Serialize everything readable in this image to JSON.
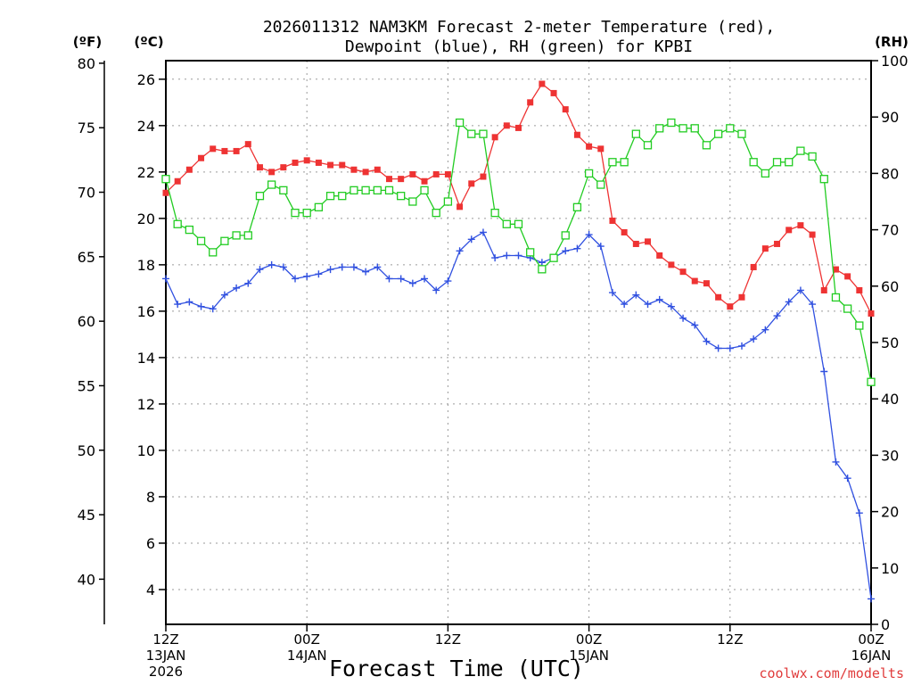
{
  "chart_data": {
    "type": "line",
    "title": [
      "2026011312 NAM3KM Forecast 2-meter Temperature (red),",
      "Dewpoint (blue), RH (green) for KPBI"
    ],
    "xlabel": "Forecast Time (UTC)",
    "credit": "coolwx.com/modelts",
    "units": {
      "fahrenheit": "(ºF)",
      "celsius": "(ºC)",
      "rh": "(RH)"
    },
    "x_range": [
      0,
      60
    ],
    "x_ticks": [
      {
        "x": 0,
        "lines": [
          "12Z",
          "13JAN",
          "2026"
        ]
      },
      {
        "x": 12,
        "lines": [
          "00Z",
          "14JAN"
        ]
      },
      {
        "x": 24,
        "lines": [
          "12Z"
        ]
      },
      {
        "x": 36,
        "lines": [
          "00Z",
          "15JAN"
        ]
      },
      {
        "x": 48,
        "lines": [
          "12Z"
        ]
      },
      {
        "x": 60,
        "lines": [
          "00Z",
          "16JAN"
        ]
      }
    ],
    "celsius_axis": {
      "range": [
        2.5,
        26.8
      ],
      "ticks": [
        "4",
        "6",
        "8",
        "10",
        "12",
        "14",
        "16",
        "18",
        "20",
        "22",
        "24",
        "26"
      ]
    },
    "fahrenheit_axis": {
      "range": [
        36.5,
        80.2
      ],
      "ticks": [
        "40",
        "45",
        "50",
        "55",
        "60",
        "65",
        "70",
        "75",
        "80"
      ]
    },
    "rh_axis": {
      "range": [
        0,
        100
      ],
      "ticks": [
        "0",
        "10",
        "20",
        "30",
        "40",
        "50",
        "60",
        "70",
        "80",
        "90",
        "100"
      ]
    },
    "series": [
      {
        "name": "Temperature",
        "color": "#ee3333",
        "marker": "filled-square",
        "axis": "celsius",
        "values": [
          21.1,
          21.6,
          22.1,
          22.6,
          23.0,
          22.9,
          22.9,
          23.2,
          22.2,
          22.0,
          22.2,
          22.4,
          22.5,
          22.4,
          22.3,
          22.3,
          22.1,
          22.0,
          22.1,
          21.7,
          21.7,
          21.9,
          21.6,
          21.9,
          21.9,
          20.5,
          21.5,
          21.8,
          23.5,
          24.0,
          23.9,
          25.0,
          25.8,
          25.4,
          24.7,
          23.6,
          23.1,
          23.0,
          19.9,
          19.4,
          18.9,
          19.0,
          18.4,
          18.0,
          17.7,
          17.3,
          17.2,
          16.6,
          16.2,
          16.6,
          17.9,
          18.7,
          18.9,
          19.5,
          19.7,
          19.3,
          16.9,
          17.8,
          17.5,
          16.9,
          15.9
        ]
      },
      {
        "name": "Dewpoint",
        "color": "#3050e0",
        "marker": "plus",
        "axis": "celsius",
        "values": [
          17.4,
          16.3,
          16.4,
          16.2,
          16.1,
          16.7,
          17.0,
          17.2,
          17.8,
          18.0,
          17.9,
          17.4,
          17.5,
          17.6,
          17.8,
          17.9,
          17.9,
          17.7,
          17.9,
          17.4,
          17.4,
          17.2,
          17.4,
          16.9,
          17.3,
          18.6,
          19.1,
          19.4,
          18.3,
          18.4,
          18.4,
          18.3,
          18.1,
          18.3,
          18.6,
          18.7,
          19.3,
          18.8,
          16.8,
          16.3,
          16.7,
          16.3,
          16.5,
          16.2,
          15.7,
          15.4,
          14.7,
          14.4,
          14.4,
          14.5,
          14.8,
          15.2,
          15.8,
          16.4,
          16.9,
          16.3,
          13.4,
          9.5,
          8.8,
          7.3,
          3.6
        ]
      },
      {
        "name": "RH",
        "color": "#22cc22",
        "marker": "open-square",
        "axis": "rh",
        "values": [
          79,
          71,
          70,
          68,
          66,
          68,
          69,
          69,
          76,
          78,
          77,
          73,
          73,
          74,
          76,
          76,
          77,
          77,
          77,
          77,
          76,
          75,
          77,
          73,
          75,
          89,
          87,
          87,
          73,
          71,
          71,
          66,
          63,
          65,
          69,
          74,
          80,
          78,
          82,
          82,
          87,
          85,
          88,
          89,
          88,
          88,
          85,
          87,
          88,
          87,
          82,
          80,
          82,
          82,
          84,
          83,
          79,
          58,
          56,
          53,
          43
        ]
      }
    ]
  }
}
